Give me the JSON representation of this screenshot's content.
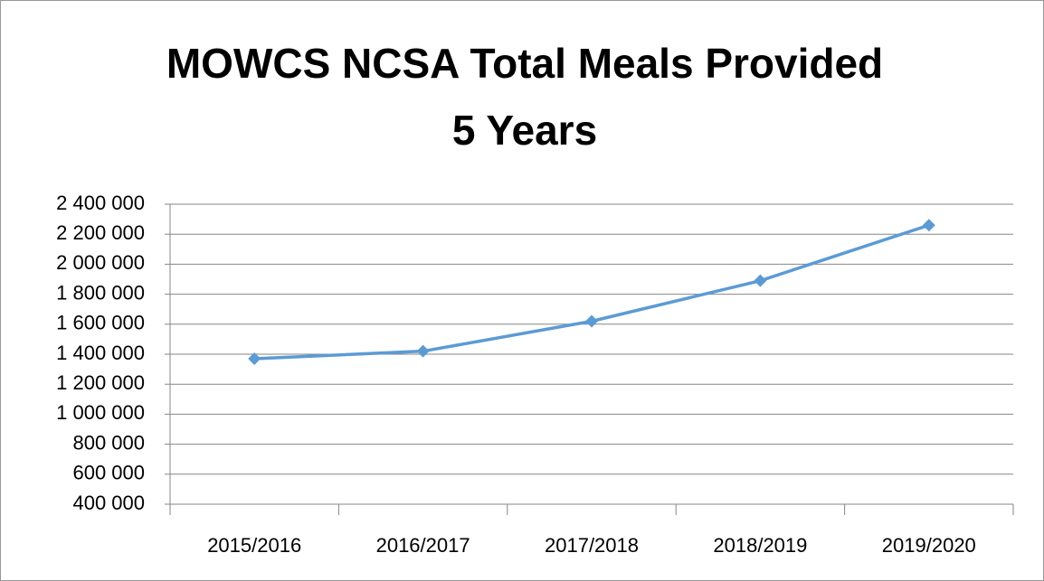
{
  "chart_data": {
    "type": "line",
    "title": [
      "MOWCS NCSA Total Meals Provided",
      "5 Years"
    ],
    "categories": [
      "2015/2016",
      "2016/2017",
      "2017/2018",
      "2018/2019",
      "2019/2020"
    ],
    "series": [
      {
        "color": "#5b9bd5",
        "values": [
          1370000,
          1420000,
          1620000,
          1890000,
          2260000
        ]
      }
    ],
    "ylim": [
      400000,
      2400000
    ],
    "yticks": [
      {
        "value": 400000,
        "label": "400 000"
      },
      {
        "value": 600000,
        "label": "600 000"
      },
      {
        "value": 800000,
        "label": "800 000"
      },
      {
        "value": 1000000,
        "label": "1 000 000"
      },
      {
        "value": 1200000,
        "label": "1 200 000"
      },
      {
        "value": 1400000,
        "label": "1 400 000"
      },
      {
        "value": 1600000,
        "label": "1 600 000"
      },
      {
        "value": 1800000,
        "label": "1 800 000"
      },
      {
        "value": 2000000,
        "label": "2 000 000"
      },
      {
        "value": 2200000,
        "label": "2 200 000"
      },
      {
        "value": 2400000,
        "label": "2 400 000"
      }
    ],
    "grid": true
  }
}
